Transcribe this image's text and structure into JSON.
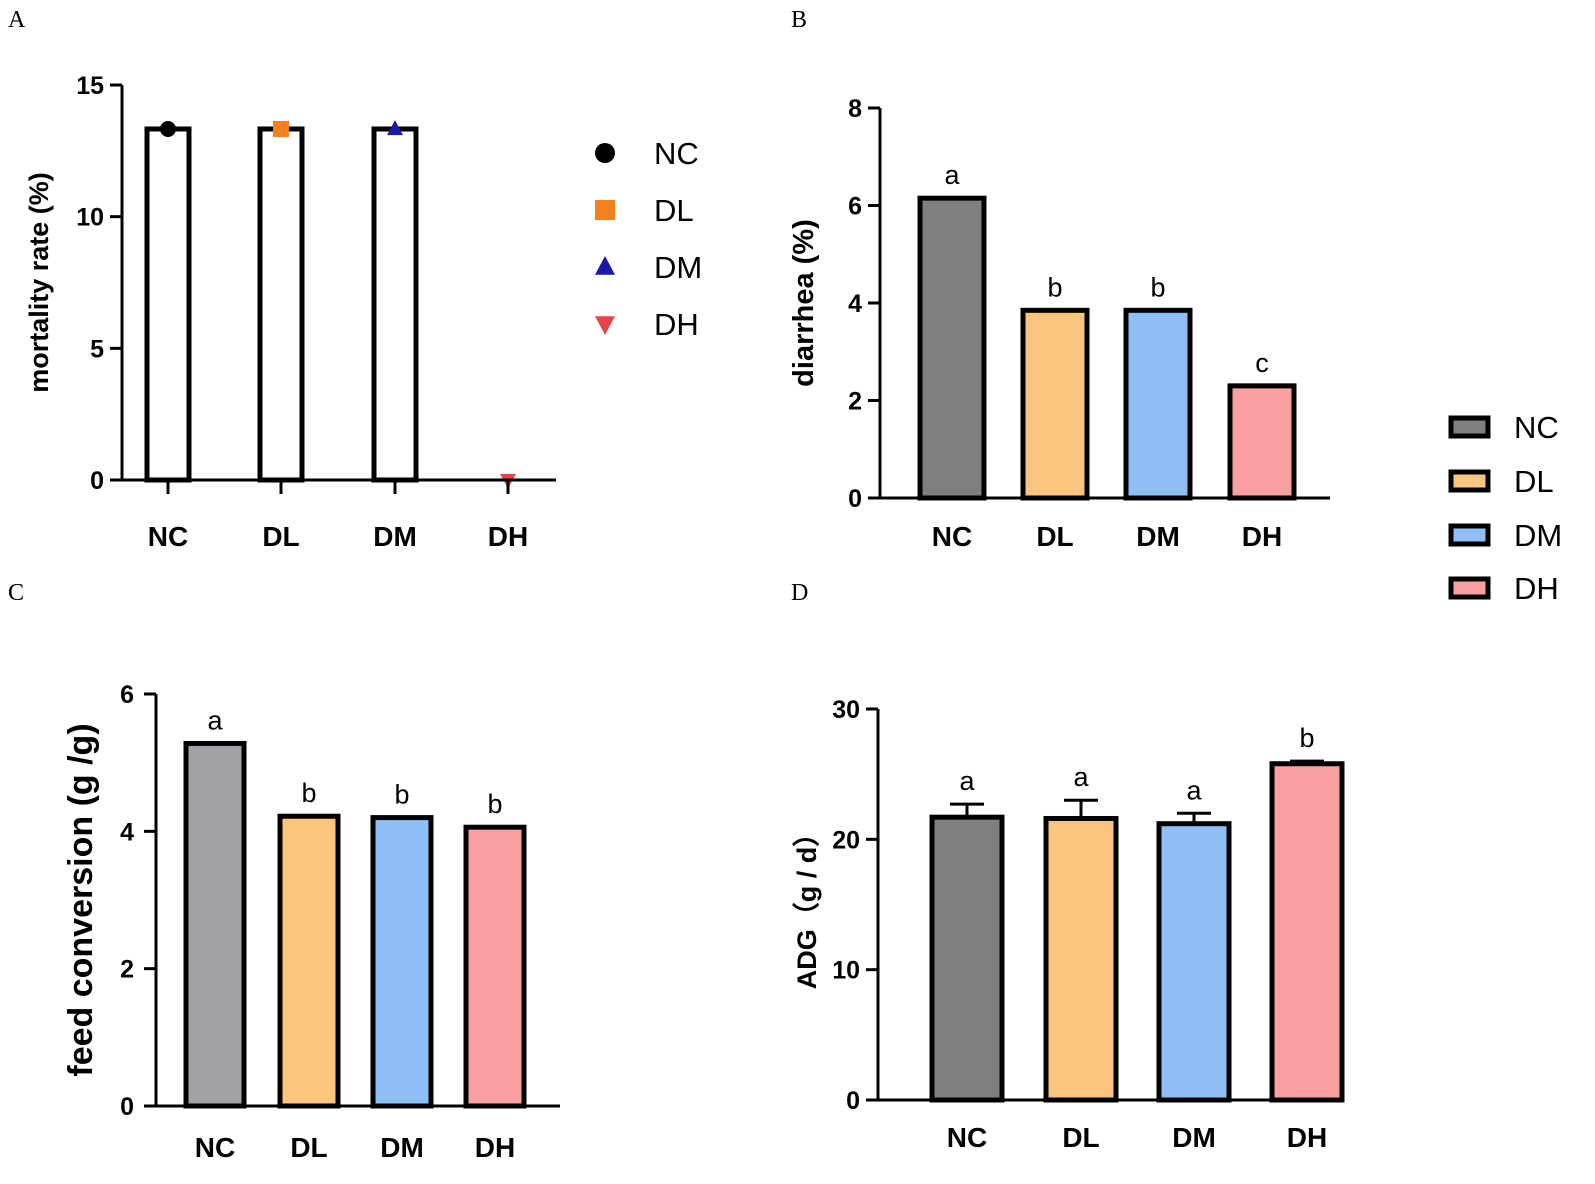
{
  "chart_data": [
    {
      "panel": "A",
      "type": "bar",
      "categories": [
        "NC",
        "DL",
        "DM",
        "DH"
      ],
      "values": [
        13.33,
        13.33,
        13.33,
        0
      ],
      "ylabel": "mortality rate (%)",
      "ylim": [
        0,
        15
      ],
      "yticks": [
        0,
        5,
        10,
        15
      ],
      "bar_fill": "#ffffff",
      "markers": [
        "circle",
        "square",
        "triangle-up",
        "triangle-down"
      ],
      "marker_colors": [
        "#000000",
        "#f4801f",
        "#1a1aa8",
        "#e8454a"
      ],
      "legend": {
        "position": "right",
        "entries": [
          "NC",
          "DL",
          "DM",
          "DH"
        ]
      }
    },
    {
      "panel": "B",
      "type": "bar",
      "categories": [
        "NC",
        "DL",
        "DM",
        "DH"
      ],
      "values": [
        6.15,
        3.85,
        3.85,
        2.3
      ],
      "labels": [
        "a",
        "b",
        "b",
        "c"
      ],
      "ylabel": "diarrhea (%)",
      "ylim": [
        0,
        8
      ],
      "yticks": [
        0,
        2,
        4,
        6,
        8
      ],
      "colors": [
        "#7f7f7f",
        "#fbc47f",
        "#8fbff7",
        "#fba0a0"
      ],
      "legend": {
        "position": "right",
        "entries": [
          "NC",
          "DL",
          "DM",
          "DH"
        ]
      }
    },
    {
      "panel": "C",
      "type": "bar",
      "categories": [
        "NC",
        "DL",
        "DM",
        "DH"
      ],
      "values": [
        5.28,
        4.22,
        4.2,
        4.06
      ],
      "labels": [
        "a",
        "b",
        "b",
        "b"
      ],
      "ylabel": "feed conversion (g /g)",
      "ylim": [
        0,
        6
      ],
      "yticks": [
        0,
        2,
        4,
        6
      ],
      "colors": [
        "#a1a1a6",
        "#fbc47f",
        "#8fbff7",
        "#fba0a0"
      ]
    },
    {
      "panel": "D",
      "type": "bar",
      "categories": [
        "NC",
        "DL",
        "DM",
        "DH"
      ],
      "values": [
        21.7,
        21.6,
        21.2,
        25.8
      ],
      "errors": [
        1.0,
        1.4,
        0.8,
        0.2
      ],
      "labels": [
        "a",
        "a",
        "a",
        "b"
      ],
      "ylabel": "ADG（g / d）",
      "ylim": [
        0,
        30
      ],
      "yticks": [
        0,
        10,
        20,
        30
      ],
      "colors": [
        "#7f7f7f",
        "#fbc47f",
        "#8fbff7",
        "#fba0a0"
      ]
    }
  ]
}
